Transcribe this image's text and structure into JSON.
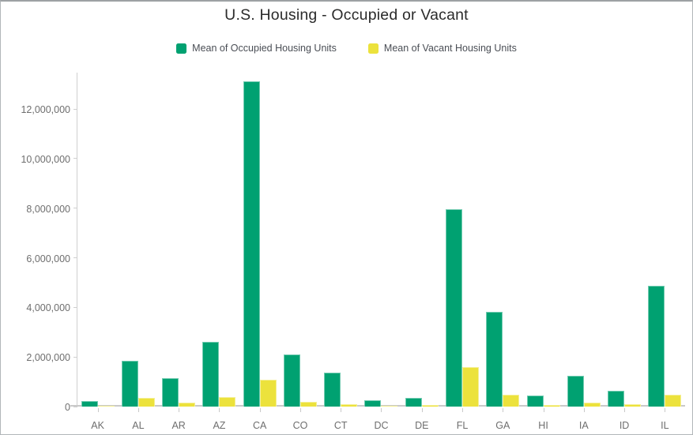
{
  "chart_data": {
    "type": "bar",
    "title": "U.S. Housing - Occupied or Vacant",
    "xlabel": "",
    "ylabel": "",
    "grid": false,
    "legend_position": "top",
    "categories": [
      "AK",
      "AL",
      "AR",
      "AZ",
      "CA",
      "CO",
      "CT",
      "DC",
      "DE",
      "FL",
      "GA",
      "HI",
      "IA",
      "ID",
      "IL"
    ],
    "series": [
      {
        "name": "Mean of Occupied Housing Units",
        "color": "#00a171",
        "values": [
          230000,
          1860000,
          1140000,
          2600000,
          13100000,
          2100000,
          1360000,
          250000,
          340000,
          7950000,
          3820000,
          440000,
          1250000,
          630000,
          4880000
        ]
      },
      {
        "name": "Mean of Vacant Housing Units",
        "color": "#ece23c",
        "values": [
          40000,
          350000,
          160000,
          370000,
          1070000,
          190000,
          110000,
          30000,
          60000,
          1600000,
          470000,
          80000,
          150000,
          90000,
          490000
        ]
      }
    ],
    "ylim": [
      0,
      13400000
    ],
    "y_ticks": [
      {
        "value": 0,
        "label": "0"
      },
      {
        "value": 2000000,
        "label": "2,000,000"
      },
      {
        "value": 4000000,
        "label": "4,000,000"
      },
      {
        "value": 6000000,
        "label": "6,000,000"
      },
      {
        "value": 8000000,
        "label": "8,000,000"
      },
      {
        "value": 10000000,
        "label": "10,000,000"
      },
      {
        "value": 12000000,
        "label": "12,000,000"
      }
    ],
    "colors": {
      "title_text": "#2b2b2b",
      "legend_text": "#4a4e55",
      "axis_line": "#cfcfcf",
      "axis_label_text": "#6e6e6e",
      "occupied_bar": "#00a171",
      "vacant_bar": "#ece23c"
    }
  }
}
